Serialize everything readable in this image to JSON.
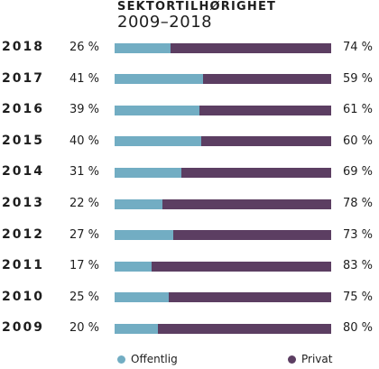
{
  "chart_data": {
    "type": "bar",
    "stacked": true,
    "orientation": "horizontal",
    "title": "SEKTORTILHØRIGHET",
    "subtitle": "2009–2018",
    "categories": [
      "2018",
      "2017",
      "2016",
      "2015",
      "2014",
      "2013",
      "2012",
      "2011",
      "2010",
      "2009"
    ],
    "series": [
      {
        "name": "Offentlig",
        "color": "#72adc3",
        "values": [
          26,
          41,
          39,
          40,
          31,
          22,
          27,
          17,
          25,
          20
        ]
      },
      {
        "name": "Privat",
        "color": "#5c3e62",
        "values": [
          74,
          59,
          61,
          60,
          69,
          78,
          73,
          83,
          75,
          80
        ]
      }
    ],
    "value_suffix": " %",
    "xlim": [
      0,
      100
    ],
    "legend_position": "bottom"
  }
}
